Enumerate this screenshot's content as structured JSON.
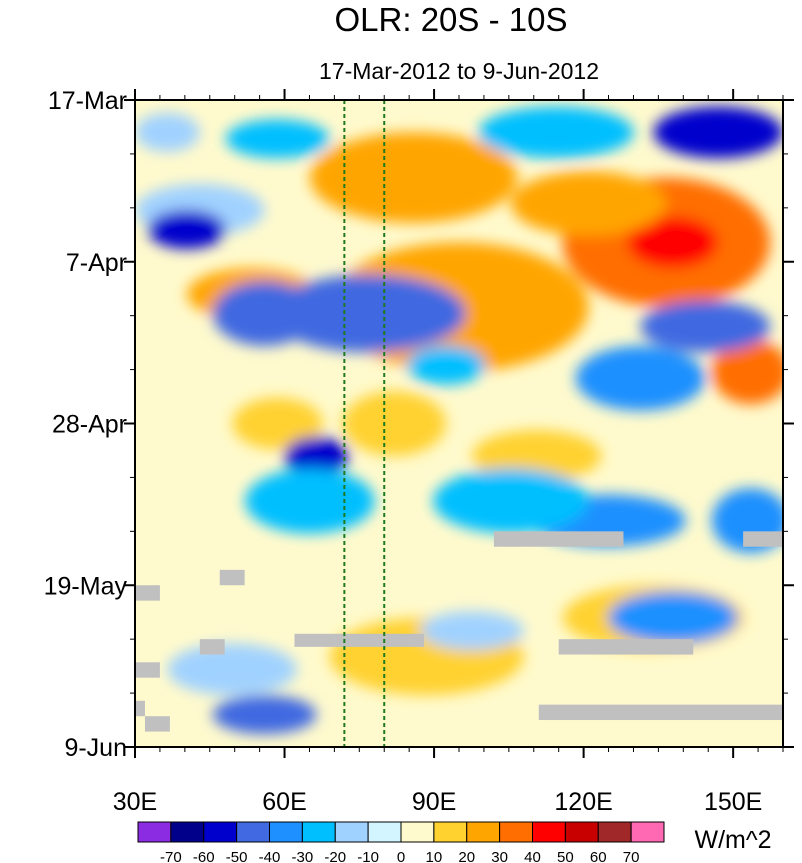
{
  "chart_data": {
    "type": "heatmap",
    "title": "OLR: 20S - 10S",
    "subtitle": "17-Mar-2012 to 9-Jun-2012",
    "x_ticks": [
      {
        "value": 30,
        "label": "30E"
      },
      {
        "value": 60,
        "label": "60E"
      },
      {
        "value": 90,
        "label": "90E"
      },
      {
        "value": 120,
        "label": "120E"
      },
      {
        "value": 150,
        "label": "150E"
      }
    ],
    "y_ticks": [
      {
        "value": 0,
        "label": "17-Mar"
      },
      {
        "value": 21,
        "label": "7-Apr"
      },
      {
        "value": 42,
        "label": "28-Apr"
      },
      {
        "value": 63,
        "label": "19-May"
      },
      {
        "value": 84,
        "label": "9-Jun"
      }
    ],
    "xlim": [
      30,
      160
    ],
    "ylim": [
      0,
      84
    ],
    "units": "W/m^2",
    "colorbar": {
      "levels": [
        "-70",
        "-60",
        "-50",
        "-40",
        "-30",
        "-20",
        "-10",
        "0",
        "10",
        "20",
        "30",
        "40",
        "50",
        "60",
        "70"
      ],
      "colors": [
        "#8b2be2",
        "#00008b",
        "#0000cd",
        "#4169e1",
        "#1e90ff",
        "#00bfff",
        "#a0d2ff",
        "#d2f5ff",
        "#fffacd",
        "#ffd230",
        "#ffa500",
        "#ff6e00",
        "#ff0000",
        "#c80000",
        "#a02828",
        "#ff69b4"
      ]
    },
    "reference_lines_lon": [
      72,
      80
    ],
    "missing_color": "#c0c0c0"
  }
}
